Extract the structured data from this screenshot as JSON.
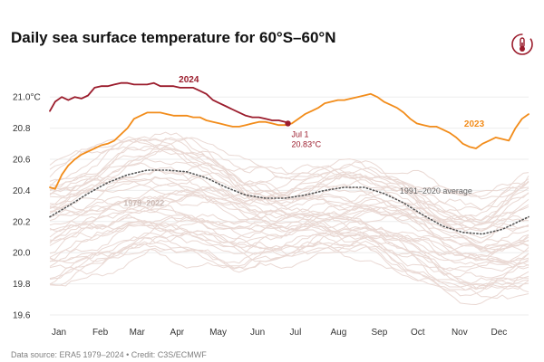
{
  "header": {
    "title": "Daily sea surface temperature for 60°S–60°N"
  },
  "footer": {
    "source": "Data source: ERA5 1979–2024 • Credit: C3S/ECMWF"
  },
  "logo": {
    "icon": "thermometer-globe-icon",
    "color": "#9b1c2c"
  },
  "colors": {
    "series_2024": "#9b1c2c",
    "series_2023": "#f28c1a",
    "average": "#555555",
    "historical": "#ead9d4",
    "grid": "#eeeeee"
  },
  "chart_data": {
    "type": "line",
    "title": "Daily sea surface temperature for 60°S–60°N",
    "xlabel": "",
    "ylabel": "",
    "x_unit": "day of year",
    "xlim": [
      1,
      365
    ],
    "ylim": [
      19.6,
      21.1
    ],
    "yticks": [
      19.6,
      19.8,
      20.0,
      20.2,
      20.4,
      20.6,
      20.8,
      21.0
    ],
    "ytick_labels": [
      "19.6",
      "19.8",
      "20.0",
      "20.2",
      "20.4",
      "20.6",
      "20.8",
      "21.0°C"
    ],
    "month_labels": [
      "Jan",
      "Feb",
      "Mar",
      "Apr",
      "May",
      "Jun",
      "Jul",
      "Aug",
      "Sep",
      "Oct",
      "Nov",
      "Dec"
    ],
    "month_starts": [
      1,
      32,
      60,
      91,
      121,
      152,
      182,
      213,
      244,
      274,
      305,
      335
    ],
    "grid": true,
    "legend": "none",
    "series": [
      {
        "name": "2024",
        "label": "2024",
        "style": "solid",
        "x": [
          1,
          5,
          10,
          15,
          20,
          25,
          30,
          35,
          40,
          45,
          50,
          55,
          60,
          65,
          70,
          75,
          80,
          85,
          90,
          95,
          100,
          105,
          110,
          115,
          120,
          125,
          130,
          135,
          140,
          145,
          150,
          155,
          160,
          165,
          170,
          175,
          180,
          182
        ],
        "values": [
          20.91,
          20.97,
          21.0,
          20.98,
          21.0,
          20.99,
          21.01,
          21.06,
          21.07,
          21.07,
          21.08,
          21.09,
          21.09,
          21.08,
          21.08,
          21.08,
          21.09,
          21.07,
          21.07,
          21.07,
          21.06,
          21.06,
          21.06,
          21.04,
          21.02,
          20.98,
          20.96,
          20.94,
          20.92,
          20.9,
          20.88,
          20.87,
          20.87,
          20.86,
          20.85,
          20.85,
          20.84,
          20.83
        ]
      },
      {
        "name": "2023",
        "label": "2023",
        "style": "solid",
        "x": [
          1,
          5,
          10,
          15,
          20,
          25,
          30,
          35,
          40,
          45,
          50,
          55,
          60,
          65,
          70,
          75,
          80,
          85,
          90,
          95,
          100,
          105,
          110,
          115,
          120,
          125,
          130,
          135,
          140,
          145,
          150,
          155,
          160,
          165,
          170,
          175,
          180,
          185,
          190,
          195,
          200,
          205,
          210,
          215,
          220,
          225,
          230,
          235,
          240,
          245,
          250,
          255,
          260,
          265,
          270,
          275,
          280,
          285,
          290,
          295,
          300,
          305,
          310,
          315,
          320,
          325,
          330,
          335,
          340,
          345,
          350,
          355,
          360,
          365
        ],
        "values": [
          20.42,
          20.41,
          20.5,
          20.56,
          20.6,
          20.63,
          20.65,
          20.67,
          20.69,
          20.7,
          20.72,
          20.76,
          20.8,
          20.86,
          20.88,
          20.9,
          20.9,
          20.9,
          20.89,
          20.88,
          20.88,
          20.88,
          20.87,
          20.87,
          20.85,
          20.84,
          20.83,
          20.82,
          20.81,
          20.81,
          20.82,
          20.83,
          20.84,
          20.84,
          20.83,
          20.82,
          20.82,
          20.83,
          20.86,
          20.89,
          20.91,
          20.93,
          20.96,
          20.97,
          20.98,
          20.98,
          20.99,
          21.0,
          21.01,
          21.02,
          21.0,
          20.97,
          20.95,
          20.93,
          20.9,
          20.86,
          20.83,
          20.82,
          20.81,
          20.81,
          20.79,
          20.77,
          20.74,
          20.7,
          20.68,
          20.67,
          20.7,
          20.72,
          20.74,
          20.73,
          20.72,
          20.8,
          20.86,
          20.89
        ]
      },
      {
        "name": "1991–2020 average",
        "label": "1991–2020 average",
        "style": "dotted",
        "x": [
          1,
          15,
          30,
          45,
          60,
          75,
          90,
          105,
          120,
          135,
          150,
          165,
          180,
          195,
          210,
          225,
          240,
          255,
          270,
          285,
          300,
          315,
          330,
          345,
          365
        ],
        "values": [
          20.23,
          20.3,
          20.38,
          20.45,
          20.5,
          20.53,
          20.53,
          20.52,
          20.48,
          20.42,
          20.37,
          20.35,
          20.35,
          20.37,
          20.4,
          20.42,
          20.42,
          20.38,
          20.32,
          20.24,
          20.17,
          20.13,
          20.12,
          20.15,
          20.23
        ]
      }
    ],
    "background_band": {
      "name": "1979–2022",
      "label": "1979–2022",
      "x": [
        1,
        30,
        60,
        90,
        120,
        150,
        180,
        210,
        240,
        270,
        300,
        330,
        365
      ],
      "low": [
        19.8,
        19.85,
        19.95,
        20.0,
        19.95,
        19.9,
        19.95,
        20.0,
        20.0,
        19.9,
        19.75,
        19.7,
        19.75
      ],
      "high": [
        20.55,
        20.65,
        20.75,
        20.75,
        20.7,
        20.55,
        20.5,
        20.55,
        20.55,
        20.5,
        20.4,
        20.35,
        20.5
      ]
    },
    "annotations": [
      {
        "text": "Jul 1",
        "x": 182,
        "y": 20.83
      },
      {
        "text": "20.83°C",
        "x": 182,
        "y": 20.83
      }
    ]
  }
}
